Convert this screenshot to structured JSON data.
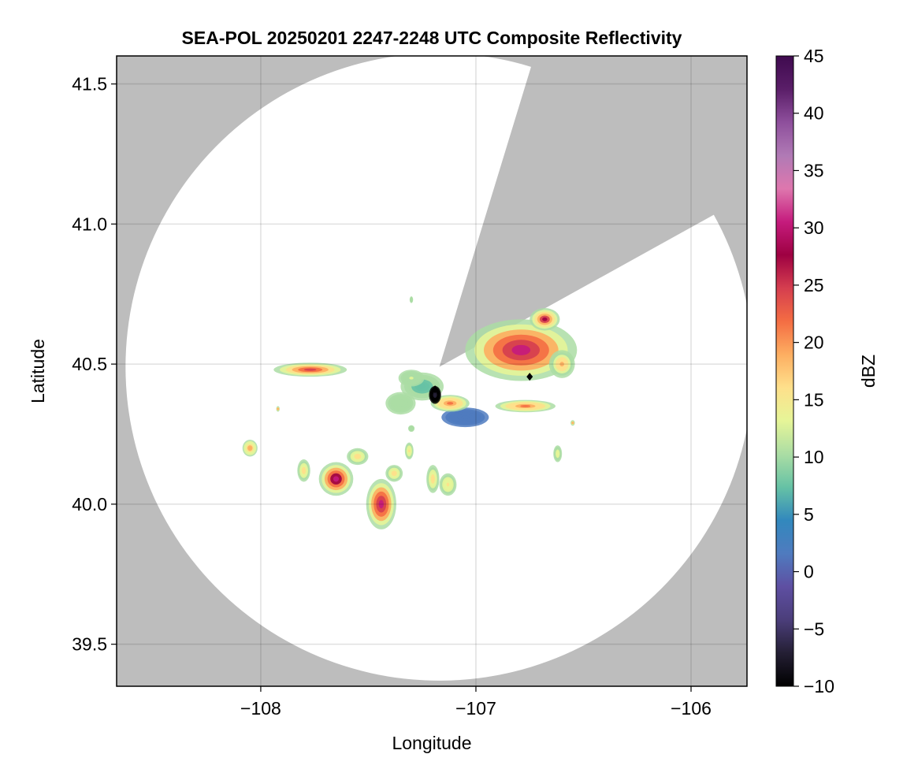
{
  "chart_data": {
    "type": "heatmap",
    "title": "SEA-POL 20250201 2247-2248 UTC Composite Reflectivity",
    "xlabel": "Longitude",
    "ylabel": "Latitude",
    "xlim": [
      -108.67,
      -105.74
    ],
    "ylim": [
      39.35,
      41.6
    ],
    "xticks": [
      -108,
      -107,
      -106
    ],
    "xtick_labels": [
      "−108",
      "−107",
      "−106"
    ],
    "yticks": [
      39.5,
      40.0,
      40.5,
      41.0,
      41.5
    ],
    "ytick_labels": [
      "39.5",
      "40.0",
      "40.5",
      "41.0",
      "41.5"
    ],
    "grid": true,
    "background_color": "#bdbdbd",
    "coverage_color": "#ffffff",
    "radar": {
      "center": [
        -107.17,
        40.49
      ],
      "max_range_deg_lat": 1.12,
      "blocked_sectors_deg_from_north": [
        [
          17,
          61
        ]
      ]
    },
    "colorbar": {
      "label": "dBZ",
      "min": -10,
      "max": 45,
      "ticks": [
        -10,
        -5,
        0,
        5,
        10,
        15,
        20,
        25,
        30,
        35,
        40,
        45
      ],
      "tick_labels": [
        "−10",
        "−5",
        "0",
        "5",
        "10",
        "15",
        "20",
        "25",
        "30",
        "35",
        "40",
        "45"
      ],
      "colormap": "Spectral reversed",
      "colors": [
        "#000000",
        "#241f34",
        "#4b3e7a",
        "#5e4fa2",
        "#4f7bbf",
        "#3288bd",
        "#66c2a5",
        "#abdda4",
        "#e6f598",
        "#fee08b",
        "#fdae61",
        "#f46d43",
        "#d53e4f",
        "#9e0142",
        "#c51b7d",
        "#de77ae",
        "#b07ab5",
        "#8e4f9c",
        "#5a1e68",
        "#3f0a4f"
      ]
    },
    "echoes": [
      {
        "lon": -106.79,
        "lat": 40.55,
        "rx": 0.26,
        "ry": 0.11,
        "peak_dbz": 30
      },
      {
        "lon": -106.68,
        "lat": 40.66,
        "rx": 0.07,
        "ry": 0.04,
        "peak_dbz": 27
      },
      {
        "lon": -106.6,
        "lat": 40.5,
        "rx": 0.06,
        "ry": 0.05,
        "peak_dbz": 18
      },
      {
        "lon": -107.77,
        "lat": 40.48,
        "rx": 0.17,
        "ry": 0.025,
        "peak_dbz": 26
      },
      {
        "lon": -107.05,
        "lat": 40.31,
        "rx": 0.11,
        "ry": 0.035,
        "peak_dbz": 3
      },
      {
        "lon": -107.12,
        "lat": 40.36,
        "rx": 0.09,
        "ry": 0.03,
        "peak_dbz": 22
      },
      {
        "lon": -106.77,
        "lat": 40.35,
        "rx": 0.14,
        "ry": 0.022,
        "peak_dbz": 22
      },
      {
        "lon": -107.25,
        "lat": 40.42,
        "rx": 0.1,
        "ry": 0.05,
        "peak_dbz": 8
      },
      {
        "lon": -107.35,
        "lat": 40.36,
        "rx": 0.07,
        "ry": 0.04,
        "peak_dbz": 10
      },
      {
        "lon": -107.19,
        "lat": 40.39,
        "rx": 0.028,
        "ry": 0.032,
        "peak_dbz": -8
      },
      {
        "lon": -107.3,
        "lat": 40.45,
        "rx": 0.06,
        "ry": 0.03,
        "peak_dbz": 12
      },
      {
        "lon": -107.65,
        "lat": 40.09,
        "rx": 0.08,
        "ry": 0.06,
        "peak_dbz": 31
      },
      {
        "lon": -107.44,
        "lat": 40.0,
        "rx": 0.07,
        "ry": 0.09,
        "peak_dbz": 30
      },
      {
        "lon": -107.38,
        "lat": 40.11,
        "rx": 0.04,
        "ry": 0.03,
        "peak_dbz": 17
      },
      {
        "lon": -107.55,
        "lat": 40.17,
        "rx": 0.05,
        "ry": 0.03,
        "peak_dbz": 16
      },
      {
        "lon": -107.8,
        "lat": 40.12,
        "rx": 0.03,
        "ry": 0.04,
        "peak_dbz": 16
      },
      {
        "lon": -108.05,
        "lat": 40.2,
        "rx": 0.035,
        "ry": 0.03,
        "peak_dbz": 20
      },
      {
        "lon": -107.2,
        "lat": 40.09,
        "rx": 0.03,
        "ry": 0.05,
        "peak_dbz": 17
      },
      {
        "lon": -107.13,
        "lat": 40.07,
        "rx": 0.04,
        "ry": 0.04,
        "peak_dbz": 15
      },
      {
        "lon": -107.31,
        "lat": 40.19,
        "rx": 0.02,
        "ry": 0.03,
        "peak_dbz": 15
      },
      {
        "lon": -106.62,
        "lat": 40.18,
        "rx": 0.02,
        "ry": 0.03,
        "peak_dbz": 14
      },
      {
        "lon": -107.3,
        "lat": 40.73,
        "rx": 0.008,
        "ry": 0.012,
        "peak_dbz": 10
      },
      {
        "lon": -107.92,
        "lat": 40.34,
        "rx": 0.008,
        "ry": 0.01,
        "peak_dbz": 18
      },
      {
        "lon": -106.55,
        "lat": 40.29,
        "rx": 0.01,
        "ry": 0.01,
        "peak_dbz": 18
      },
      {
        "lon": -107.3,
        "lat": 40.27,
        "rx": 0.015,
        "ry": 0.012,
        "peak_dbz": 10
      }
    ],
    "markers": [
      {
        "lon": -107.19,
        "lat": 40.41
      },
      {
        "lon": -106.75,
        "lat": 40.455
      }
    ]
  }
}
